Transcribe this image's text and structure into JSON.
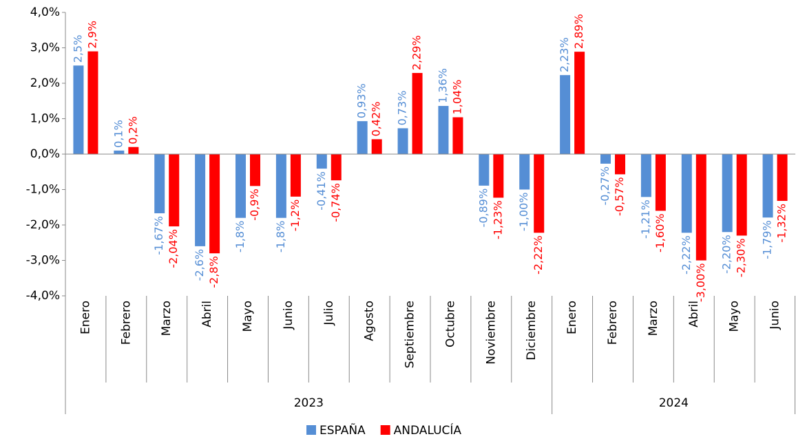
{
  "chart_data": {
    "type": "bar",
    "groups": [
      {
        "name": "2023",
        "categories": [
          "Enero",
          "Febrero",
          "Marzo",
          "Abril",
          "Mayo",
          "Junio",
          "Julio",
          "Agosto",
          "Septiembre",
          "Octubre",
          "Noviembre",
          "Diciembre"
        ]
      },
      {
        "name": "2024",
        "categories": [
          "Enero",
          "Febrero",
          "Marzo",
          "Abril",
          "Mayo",
          "Junio"
        ]
      }
    ],
    "series": [
      {
        "name": "ESPAÑA",
        "color": "#558ed5",
        "values": [
          2.5,
          0.1,
          -1.67,
          -2.6,
          -1.8,
          -1.8,
          -0.41,
          0.93,
          0.73,
          1.36,
          -0.89,
          -1.0,
          2.23,
          -0.27,
          -1.21,
          -2.22,
          -2.2,
          -1.79
        ],
        "value_labels": [
          "2,5%",
          "0,1%",
          "-1,67%",
          "-2,6%",
          "-1,8%",
          "-1,8%",
          "-0,41%",
          "0,93%",
          "0,73%",
          "1,36%",
          "-0,89%",
          "-1,00%",
          "2,23%",
          "-0,27%",
          "-1,21%",
          "-2,22%",
          "-2,20%",
          "-1,79%"
        ]
      },
      {
        "name": "ANDALUCÍA",
        "color": "#ff0000",
        "values": [
          2.9,
          0.2,
          -2.04,
          -2.8,
          -0.9,
          -1.2,
          -0.74,
          0.42,
          2.29,
          1.04,
          -1.23,
          -2.22,
          2.89,
          -0.57,
          -1.6,
          -3.0,
          -2.3,
          -1.32
        ],
        "value_labels": [
          "2,9%",
          "0,2%",
          "-2,04%",
          "-2,8%",
          "-0,9%",
          "-1,2%",
          "-0,74%",
          "0,42%",
          "2,29%",
          "1,04%",
          "-1,23%",
          "-2,22%",
          "2,89%",
          "-0,57%",
          "-1,60%",
          "-3,00%",
          "-2,30%",
          "-1,32%"
        ]
      }
    ],
    "ylim": [
      -4,
      4
    ],
    "yticks": [
      {
        "value": -4,
        "label": "-4,0%"
      },
      {
        "value": -3,
        "label": "-3,0%"
      },
      {
        "value": -2,
        "label": "-2,0%"
      },
      {
        "value": -1,
        "label": "-1,0%"
      },
      {
        "value": 0,
        "label": "0,0%"
      },
      {
        "value": 1,
        "label": "1,0%"
      },
      {
        "value": 2,
        "label": "2,0%"
      },
      {
        "value": 3,
        "label": "3,0%"
      },
      {
        "value": 4,
        "label": "4,0%"
      }
    ],
    "legend": "bottom"
  }
}
